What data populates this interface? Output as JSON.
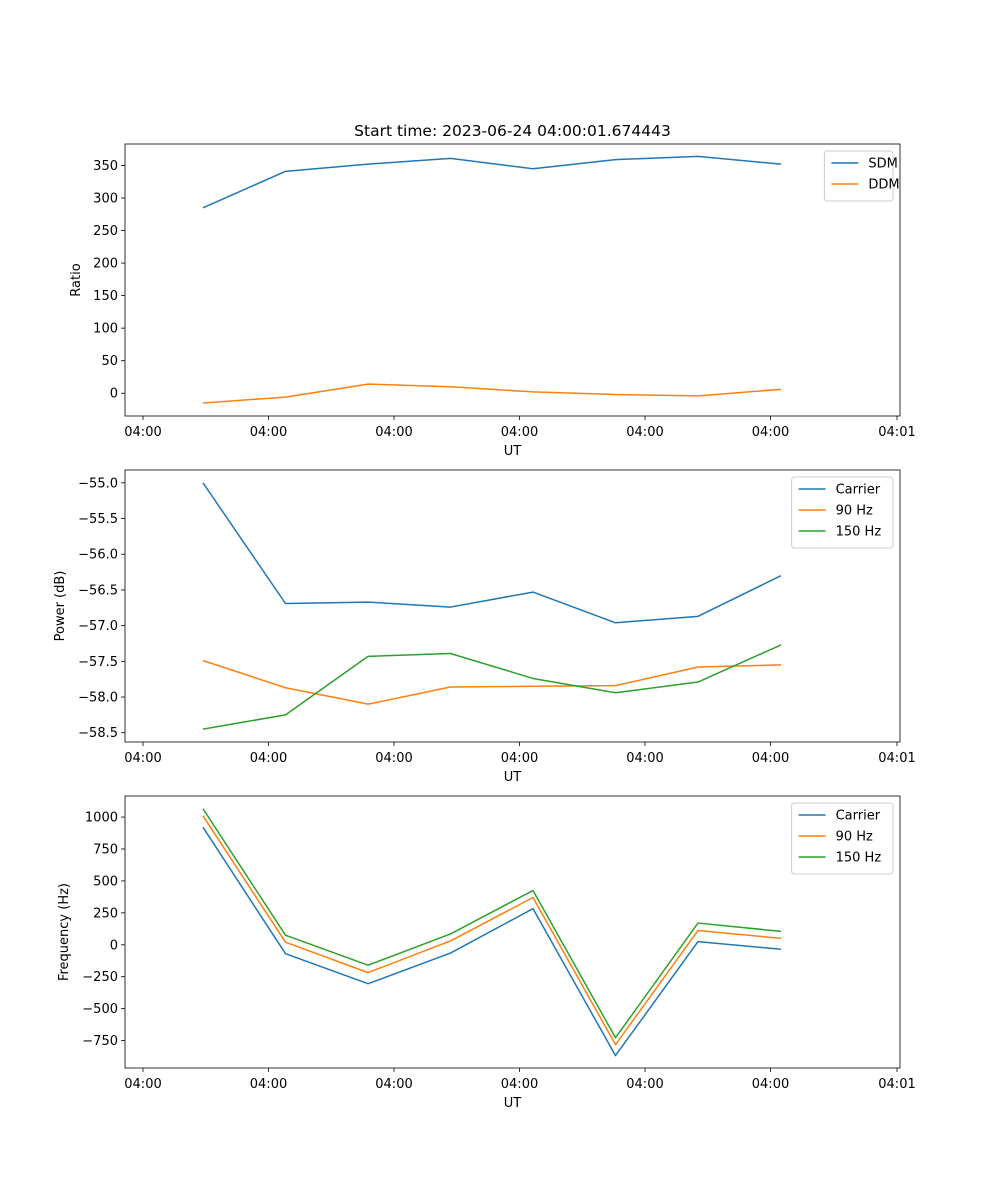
{
  "title": "Start time: 2023-06-24 04:00:01.674443",
  "colors": {
    "blue": "#1f77b4",
    "orange": "#ff7f0e",
    "green": "#2ca02c"
  },
  "chart_data": [
    {
      "type": "line",
      "ylabel": "Ratio",
      "xlabel": "UT",
      "x_tick_labels": [
        "04:00",
        "04:00",
        "04:00",
        "04:00",
        "04:00",
        "04:00",
        "04:01"
      ],
      "ylim": [
        -35,
        383
      ],
      "yticks": [
        0,
        50,
        100,
        150,
        200,
        250,
        300,
        350
      ],
      "legend": "top-right",
      "series": [
        {
          "name": "SDM",
          "color": "#1f77b4",
          "values": [
            285,
            341,
            352,
            361,
            345,
            359,
            364,
            352
          ]
        },
        {
          "name": "DDM",
          "color": "#ff7f0e",
          "values": [
            -15,
            -6,
            14,
            10,
            2,
            -2,
            -4,
            6
          ]
        }
      ]
    },
    {
      "type": "line",
      "ylabel": "Power (dB)",
      "xlabel": "UT",
      "x_tick_labels": [
        "04:00",
        "04:00",
        "04:00",
        "04:00",
        "04:00",
        "04:00",
        "04:01"
      ],
      "ylim": [
        -58.63,
        -54.82
      ],
      "yticks": [
        -58.5,
        -58.0,
        -57.5,
        -57.0,
        -56.5,
        -56.0,
        -55.5,
        -55.0
      ],
      "legend": "top-right",
      "series": [
        {
          "name": "Carrier",
          "color": "#1f77b4",
          "values": [
            -55.0,
            -56.69,
            -56.67,
            -56.74,
            -56.53,
            -56.96,
            -56.87,
            -56.3
          ]
        },
        {
          "name": "90 Hz",
          "color": "#ff7f0e",
          "values": [
            -57.49,
            -57.87,
            -58.1,
            -57.86,
            -57.85,
            -57.84,
            -57.58,
            -57.55
          ]
        },
        {
          "name": "150 Hz",
          "color": "#2ca02c",
          "values": [
            -58.45,
            -58.25,
            -57.43,
            -57.39,
            -57.74,
            -57.94,
            -57.79,
            -57.27
          ]
        }
      ]
    },
    {
      "type": "line",
      "ylabel": "Frequency (Hz)",
      "xlabel": "UT",
      "x_tick_labels": [
        "04:00",
        "04:00",
        "04:00",
        "04:00",
        "04:00",
        "04:00",
        "04:01"
      ],
      "ylim": [
        -965,
        1165
      ],
      "yticks": [
        -750,
        -500,
        -250,
        0,
        250,
        500,
        750,
        1000
      ],
      "legend": "top-right",
      "series": [
        {
          "name": "Carrier",
          "color": "#1f77b4",
          "values": [
            920,
            -70,
            -305,
            -65,
            283,
            -868,
            25,
            -35
          ]
        },
        {
          "name": "90 Hz",
          "color": "#ff7f0e",
          "values": [
            1010,
            20,
            -218,
            30,
            370,
            -782,
            112,
            50
          ]
        },
        {
          "name": "150 Hz",
          "color": "#2ca02c",
          "values": [
            1065,
            75,
            -160,
            85,
            425,
            -728,
            170,
            105
          ]
        }
      ]
    }
  ]
}
